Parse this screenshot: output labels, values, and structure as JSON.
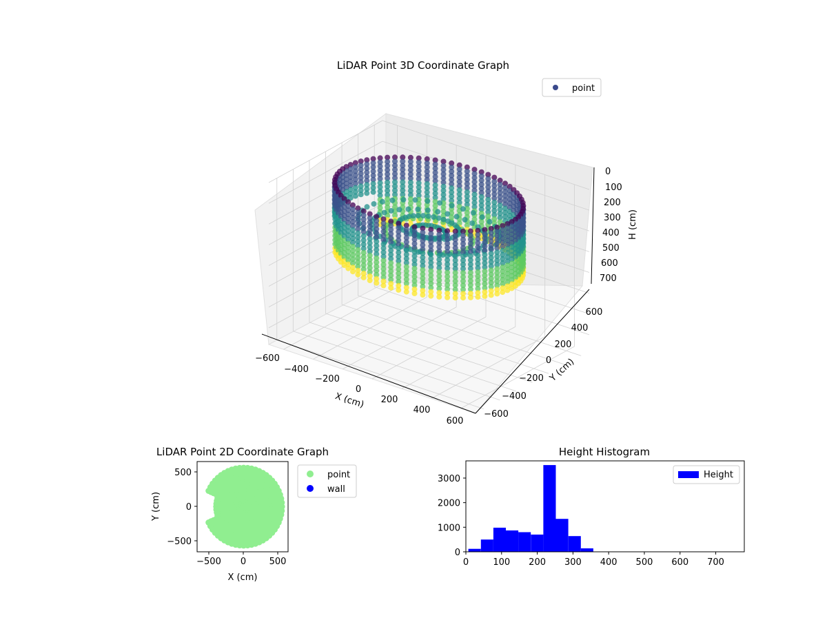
{
  "chart_data": [
    {
      "type": "scatter3d",
      "title": "LiDAR Point 3D Coordinate Graph",
      "xlabel": "X (cm)",
      "ylabel": "Y (cm)",
      "zlabel": "H (cm)",
      "xlim": [
        -700,
        700
      ],
      "ylim": [
        -700,
        700
      ],
      "zlim": [
        780,
        0
      ],
      "xticks": [
        "−600",
        "−400",
        "−200",
        "0",
        "200",
        "400",
        "600"
      ],
      "yticks": [
        "−600",
        "−400",
        "−200",
        "0",
        "200",
        "400",
        "600"
      ],
      "zticks": [
        "0",
        "100",
        "200",
        "300",
        "400",
        "500",
        "600",
        "700"
      ],
      "legend": [
        "point"
      ],
      "legend_position": "top-right",
      "colormap": [
        "#440154",
        "#3b528b",
        "#21918c",
        "#5ec962",
        "#fde725"
      ],
      "marker_color": "#3b4a8c",
      "grid": true,
      "shape": "ring of LiDAR scan rays, radius ~580 cm, heights mostly 100-350 cm"
    },
    {
      "type": "scatter",
      "title": "LiDAR Point 2D Coordinate Graph",
      "xlabel": "X (cm)",
      "ylabel": "Y (cm)",
      "xlim": [
        -680,
        650
      ],
      "ylim": [
        -650,
        650
      ],
      "xticks": [
        "−500",
        "0",
        "500"
      ],
      "yticks": [
        "−500",
        "0",
        "500"
      ],
      "series": [
        {
          "name": "point",
          "color": "#90ee90",
          "radius": 580
        },
        {
          "name": "wall",
          "color": "#0000ff"
        }
      ],
      "legend_position": "outside-right"
    },
    {
      "type": "bar",
      "title": "Height Histogram",
      "xlabel": "",
      "ylabel": "",
      "xlim": [
        0,
        780
      ],
      "ylim": [
        0,
        3700
      ],
      "xticks": [
        "0",
        "100",
        "200",
        "300",
        "400",
        "500",
        "600",
        "700"
      ],
      "yticks": [
        "0",
        "1000",
        "2000",
        "3000"
      ],
      "bin_edges": [
        7,
        42,
        77,
        112,
        147,
        182,
        217,
        252,
        287,
        322,
        357,
        392,
        427,
        462,
        497,
        532,
        567,
        602,
        637,
        672,
        707,
        742,
        777
      ],
      "values": [
        120,
        500,
        980,
        870,
        800,
        700,
        3530,
        1340,
        640,
        140,
        0,
        0,
        0,
        0,
        0,
        0,
        0,
        0,
        0,
        0,
        0,
        0
      ],
      "color": "#0000ff",
      "legend": [
        "Height"
      ],
      "legend_position": "top-right"
    }
  ]
}
